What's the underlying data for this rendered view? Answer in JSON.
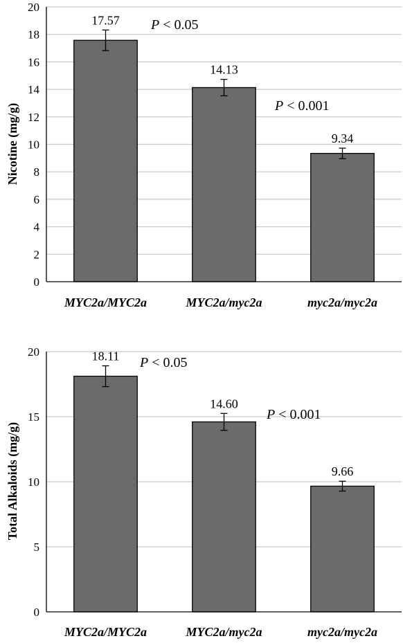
{
  "chart_data": [
    {
      "type": "bar",
      "categories": [
        "MYC2a/MYC2a",
        "MYC2a/myc2a",
        "myc2a/myc2a"
      ],
      "values": [
        17.57,
        14.13,
        9.34
      ],
      "errors": [
        0.75,
        0.6,
        0.38
      ],
      "value_labels": [
        "17.57",
        "14.13",
        "9.34"
      ],
      "xlabel": "",
      "ylabel": "Nicotine (mg/g)",
      "ylim": [
        0,
        20
      ],
      "yticks": [
        0,
        2,
        4,
        6,
        8,
        10,
        12,
        14,
        16,
        18,
        20
      ],
      "grid": true,
      "bar_color": "#6b6b6b",
      "annotations": [
        {
          "p": "P",
          "text": " < 0.05",
          "between": [
            0,
            1
          ]
        },
        {
          "p": "P",
          "text": " < 0.001",
          "between": [
            1,
            2
          ]
        }
      ]
    },
    {
      "type": "bar",
      "categories": [
        "MYC2a/MYC2a",
        "MYC2a/myc2a",
        "myc2a/myc2a"
      ],
      "values": [
        18.11,
        14.6,
        9.66
      ],
      "errors": [
        0.8,
        0.65,
        0.38
      ],
      "value_labels": [
        "18.11",
        "14.60",
        "9.66"
      ],
      "xlabel": "",
      "ylabel": "Total Alkaloids (mg/g)",
      "ylim": [
        0,
        20
      ],
      "yticks": [
        0,
        5,
        10,
        15,
        20
      ],
      "grid": true,
      "bar_color": "#6b6b6b",
      "annotations": [
        {
          "p": "P",
          "text": " < 0.05",
          "between": [
            0,
            1
          ]
        },
        {
          "p": "P",
          "text": " < 0.001",
          "between": [
            1,
            2
          ]
        }
      ]
    }
  ]
}
